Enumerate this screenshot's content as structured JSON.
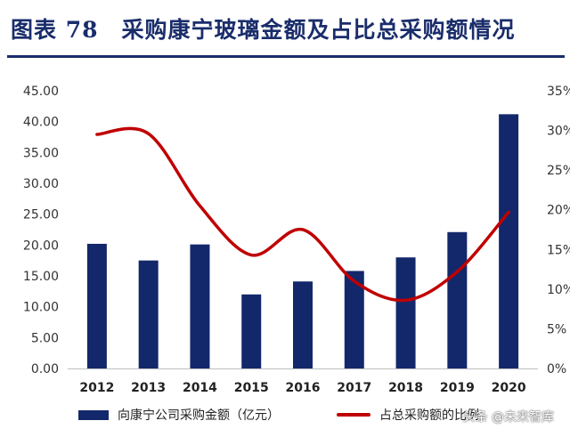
{
  "title": "图表 78　采购康宁玻璃金额及占比总采购额情况",
  "colors": {
    "bar": "#13286b",
    "line": "#c00000",
    "title": "#1a2d6b"
  },
  "chart_data": {
    "type": "bar",
    "categories": [
      "2012",
      "2013",
      "2014",
      "2015",
      "2016",
      "2017",
      "2018",
      "2019",
      "2020"
    ],
    "series": [
      {
        "name": "向康宁公司采购金额（亿元）",
        "type": "bar",
        "axis": "left",
        "values": [
          20.2,
          17.5,
          20.1,
          12.0,
          14.1,
          15.8,
          18.0,
          22.1,
          41.2
        ]
      },
      {
        "name": "占总采购额的比例",
        "type": "line",
        "axis": "right",
        "values": [
          29.5,
          29.6,
          20.5,
          14.3,
          17.5,
          11.0,
          8.6,
          12.2,
          19.7
        ]
      }
    ],
    "ylim_left": [
      0,
      45
    ],
    "yticks_left": [
      "0.00",
      "5.00",
      "10.00",
      "15.00",
      "20.00",
      "25.00",
      "30.00",
      "35.00",
      "40.00",
      "45.00"
    ],
    "ylim_right": [
      0,
      35
    ],
    "yticks_right": [
      "0%",
      "5%",
      "10%",
      "15%",
      "20%",
      "25%",
      "30%",
      "35%"
    ],
    "legend": [
      "向康宁公司采购金额（亿元）",
      "占总采购额的比例"
    ],
    "legend_position": "bottom",
    "grid": false
  },
  "watermark": "头条 @未来智库"
}
